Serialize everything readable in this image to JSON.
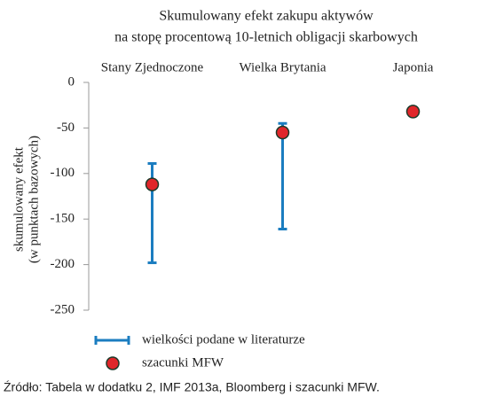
{
  "chart_data": {
    "type": "range",
    "title": [
      "Skumulowany efekt zakupu aktywów",
      "na stopę procentową 10-letnich obligacji skarbowych"
    ],
    "ylabel": [
      "skumulowany efekt",
      "(w punktach bazowych)"
    ],
    "categories": [
      "Stany Zjednoczone",
      "Wielka Brytania",
      "Japonia"
    ],
    "series": [
      {
        "name": "wielkości podane w literaturze",
        "color": "#1b7dc0",
        "low": [
          -198,
          -161,
          null
        ],
        "high": [
          -89,
          -45,
          null
        ]
      },
      {
        "name": "szacunki MFW",
        "color": "#e0262a",
        "values": [
          -112,
          -55,
          -32
        ]
      }
    ],
    "ylim": [
      -250,
      0
    ],
    "yticks": [
      0,
      -50,
      -100,
      -150,
      -200,
      -250
    ],
    "source": "Źródło: Tabela w dodatku 2, IMF 2013a, Bloomberg i szacunki MFW."
  }
}
